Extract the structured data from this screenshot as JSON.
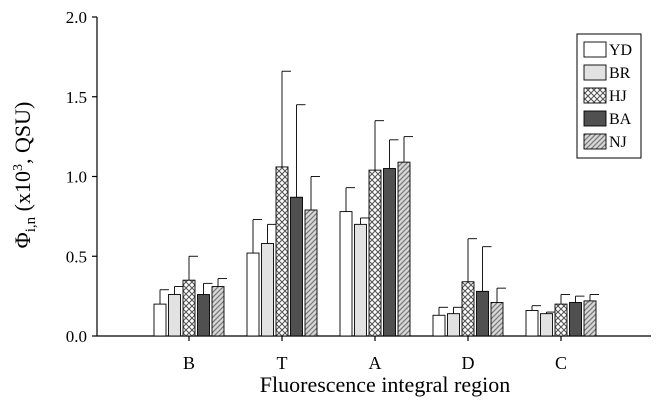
{
  "chart_data": {
    "type": "bar",
    "categories": [
      "B",
      "T",
      "A",
      "D",
      "C"
    ],
    "xlabel": "Fluorescence integral region",
    "ylabel": "Φi,n (x103, QSU)",
    "ylabel_parts": {
      "symbol": "Φ",
      "subscript": "i,n",
      "prefix": " (x10",
      "superscript": "3",
      "suffix": ", QSU)"
    },
    "ylim": [
      0,
      2.0
    ],
    "yticks": [
      0.0,
      0.5,
      1.0,
      1.5,
      2.0
    ],
    "ytick_labels": [
      "0.0",
      "0.5",
      "1.0",
      "1.5",
      "2.0"
    ],
    "grid": false,
    "legend_position": "top-right",
    "series": [
      {
        "name": "YD",
        "pattern": "white",
        "values": [
          0.2,
          0.52,
          0.78,
          0.13,
          0.16
        ],
        "errors": [
          0.09,
          0.21,
          0.15,
          0.05,
          0.03
        ]
      },
      {
        "name": "BR",
        "pattern": "lightgray",
        "values": [
          0.26,
          0.58,
          0.7,
          0.14,
          0.14
        ],
        "errors": [
          0.05,
          0.12,
          0.04,
          0.04,
          0.01
        ]
      },
      {
        "name": "HJ",
        "pattern": "crosshatch",
        "values": [
          0.35,
          1.06,
          1.04,
          0.34,
          0.2
        ],
        "errors": [
          0.15,
          0.6,
          0.31,
          0.27,
          0.06
        ]
      },
      {
        "name": "BA",
        "pattern": "darkgray",
        "values": [
          0.26,
          0.87,
          1.05,
          0.28,
          0.21
        ],
        "errors": [
          0.07,
          0.58,
          0.18,
          0.28,
          0.04
        ]
      },
      {
        "name": "NJ",
        "pattern": "diagonal",
        "values": [
          0.31,
          0.79,
          1.09,
          0.21,
          0.22
        ],
        "errors": [
          0.05,
          0.21,
          0.16,
          0.09,
          0.04
        ]
      }
    ]
  }
}
